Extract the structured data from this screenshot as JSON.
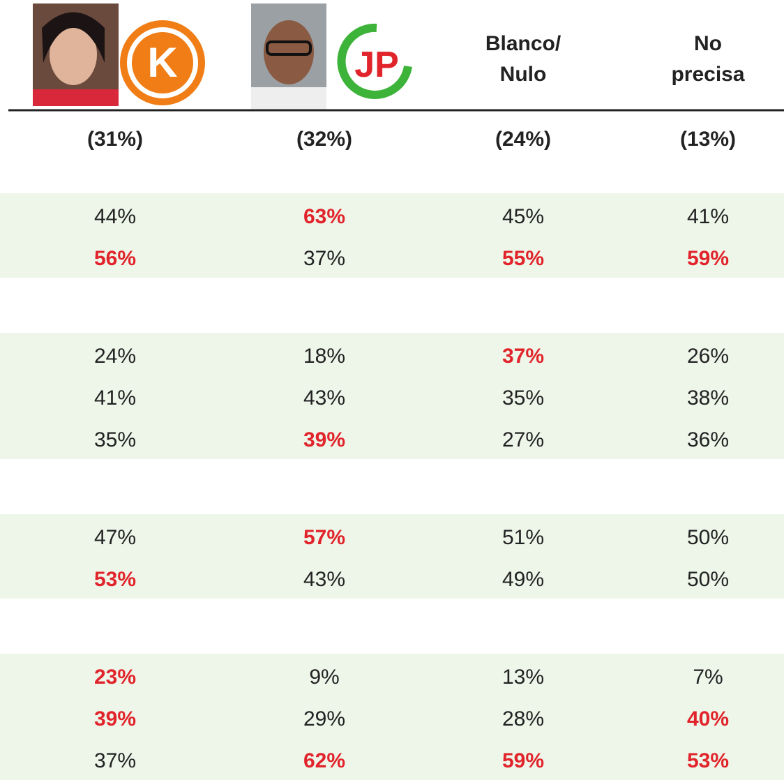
{
  "header": {
    "columns": [
      {
        "logo": "K",
        "share": "(31%)"
      },
      {
        "logo": "JP",
        "share": "(32%)"
      },
      {
        "title": [
          "Blanco/",
          "Nulo"
        ],
        "share": "(24%)"
      },
      {
        "title": [
          "No",
          "precisa"
        ],
        "share": "(13%)"
      }
    ]
  },
  "table": {
    "blocks": [
      [
        [
          {
            "text": "44%",
            "highlight": false
          },
          {
            "text": "63%",
            "highlight": true
          },
          {
            "text": "45%",
            "highlight": false
          },
          {
            "text": "41%",
            "highlight": false
          }
        ],
        [
          {
            "text": "56%",
            "highlight": true
          },
          {
            "text": "37%",
            "highlight": false
          },
          {
            "text": "55%",
            "highlight": true
          },
          {
            "text": "59%",
            "highlight": true
          }
        ]
      ],
      [
        [
          {
            "text": "24%",
            "highlight": false
          },
          {
            "text": "18%",
            "highlight": false
          },
          {
            "text": "37%",
            "highlight": true
          },
          {
            "text": "26%",
            "highlight": false
          }
        ],
        [
          {
            "text": "41%",
            "highlight": false
          },
          {
            "text": "43%",
            "highlight": false
          },
          {
            "text": "35%",
            "highlight": false
          },
          {
            "text": "38%",
            "highlight": false
          }
        ],
        [
          {
            "text": "35%",
            "highlight": false
          },
          {
            "text": "39%",
            "highlight": true
          },
          {
            "text": "27%",
            "highlight": false
          },
          {
            "text": "36%",
            "highlight": false
          }
        ]
      ],
      [
        [
          {
            "text": "47%",
            "highlight": false
          },
          {
            "text": "57%",
            "highlight": true
          },
          {
            "text": "51%",
            "highlight": false
          },
          {
            "text": "50%",
            "highlight": false
          }
        ],
        [
          {
            "text": "53%",
            "highlight": true
          },
          {
            "text": "43%",
            "highlight": false
          },
          {
            "text": "49%",
            "highlight": false
          },
          {
            "text": "50%",
            "highlight": false
          }
        ]
      ],
      [
        [
          {
            "text": "23%",
            "highlight": true
          },
          {
            "text": "9%",
            "highlight": false
          },
          {
            "text": "13%",
            "highlight": false
          },
          {
            "text": "7%",
            "highlight": false
          }
        ],
        [
          {
            "text": "39%",
            "highlight": true
          },
          {
            "text": "29%",
            "highlight": false
          },
          {
            "text": "28%",
            "highlight": false
          },
          {
            "text": "40%",
            "highlight": true
          }
        ],
        [
          {
            "text": "37%",
            "highlight": false
          },
          {
            "text": "62%",
            "highlight": true
          },
          {
            "text": "59%",
            "highlight": true
          },
          {
            "text": "53%",
            "highlight": true
          }
        ]
      ]
    ]
  }
}
